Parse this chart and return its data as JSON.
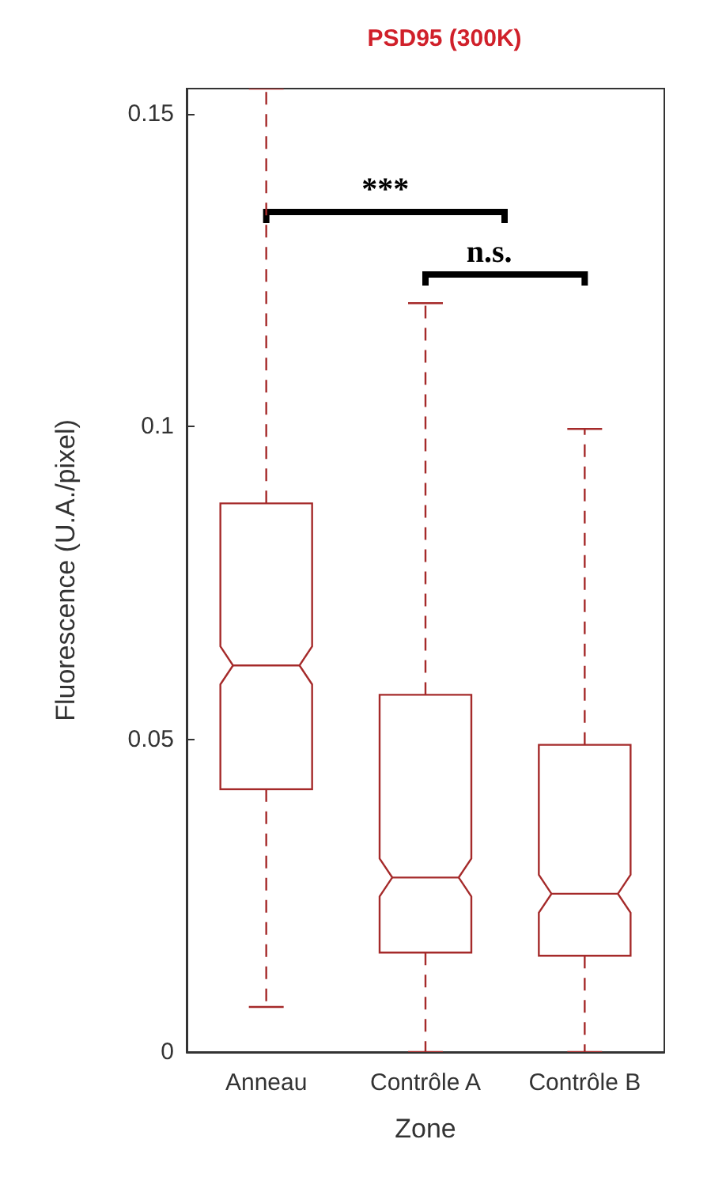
{
  "chart_data": {
    "type": "box",
    "title": "PSD95 (300K)",
    "xlabel": "Zone",
    "ylabel": "Fluorescence (U.A./pixel)",
    "categories": [
      "Anneau",
      "Contrôle A",
      "Contrôle B"
    ],
    "color": "#a52a2a",
    "boxes": [
      {
        "low": 0.0072,
        "q1": 0.042,
        "median": 0.0618,
        "q3": 0.0877,
        "high": 0.154
      },
      {
        "low": 0,
        "q1": 0.0159,
        "median": 0.0279,
        "q3": 0.0571,
        "high": 0.1197
      },
      {
        "low": 0,
        "q1": 0.0154,
        "median": 0.0253,
        "q3": 0.0491,
        "high": 0.0996
      }
    ],
    "ylim": [
      0,
      0.154
    ],
    "yticks": [
      0,
      0.05,
      0.1,
      0.15
    ],
    "annotations": [
      "***",
      "n.s."
    ],
    "grid": false
  }
}
